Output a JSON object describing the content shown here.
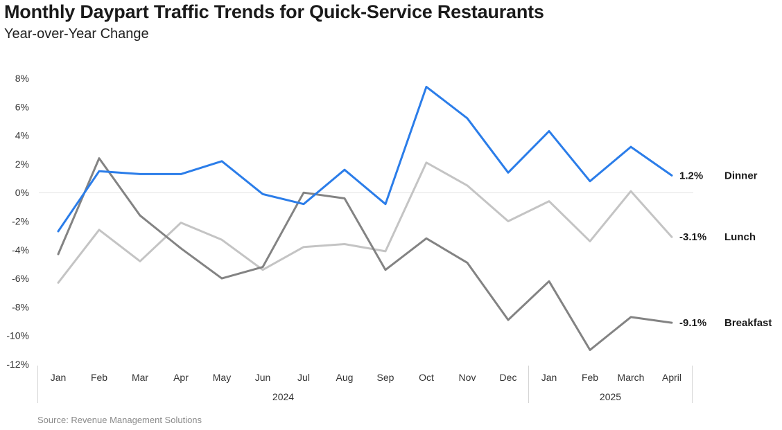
{
  "title": "Monthly Daypart Traffic Trends for Quick-Service Restaurants",
  "subtitle": "Year-over-Year Change",
  "source": "Source: Revenue Management Solutions",
  "chart_data": {
    "type": "line",
    "categories": [
      "Jan",
      "Feb",
      "Mar",
      "Apr",
      "May",
      "Jun",
      "Jul",
      "Aug",
      "Sep",
      "Oct",
      "Nov",
      "Dec",
      "Jan",
      "Feb",
      "March",
      "April"
    ],
    "groups": [
      {
        "label": "2024",
        "from": 0,
        "to": 11
      },
      {
        "label": "2025",
        "from": 12,
        "to": 15
      }
    ],
    "ylim": [
      -12,
      8
    ],
    "yticks": [
      -12,
      -10,
      -8,
      -6,
      -4,
      -2,
      0,
      2,
      4,
      6,
      8
    ],
    "ytick_labels": [
      "-12%",
      "-10%",
      "-8%",
      "-6%",
      "-4%",
      "-2%",
      "0%",
      "2%",
      "4%",
      "6%",
      "8%"
    ],
    "zero_line": true,
    "grid": false,
    "legend": "direct labels at line ends (right)",
    "series": [
      {
        "name": "Dinner",
        "color": "#2b7de9",
        "values": [
          -2.7,
          1.5,
          1.3,
          1.3,
          2.2,
          -0.1,
          -0.8,
          1.6,
          -0.8,
          7.4,
          5.2,
          1.4,
          4.3,
          0.8,
          3.2,
          1.2
        ],
        "end_label": "1.2%"
      },
      {
        "name": "Lunch",
        "color": "#c4c4c4",
        "values": [
          -6.3,
          -2.6,
          -4.8,
          -2.1,
          -3.3,
          -5.4,
          -3.8,
          -3.6,
          -4.1,
          2.1,
          0.5,
          -2.0,
          -0.6,
          -3.4,
          0.1,
          -3.1
        ],
        "end_label": "-3.1%"
      },
      {
        "name": "Breakfast",
        "color": "#838383",
        "values": [
          -4.3,
          2.4,
          -1.6,
          -3.9,
          -6.0,
          -5.2,
          0.0,
          -0.4,
          -5.4,
          -3.2,
          -4.9,
          -8.9,
          -6.2,
          -11.0,
          -8.7,
          -9.1
        ],
        "end_label": "-9.1%"
      }
    ]
  }
}
